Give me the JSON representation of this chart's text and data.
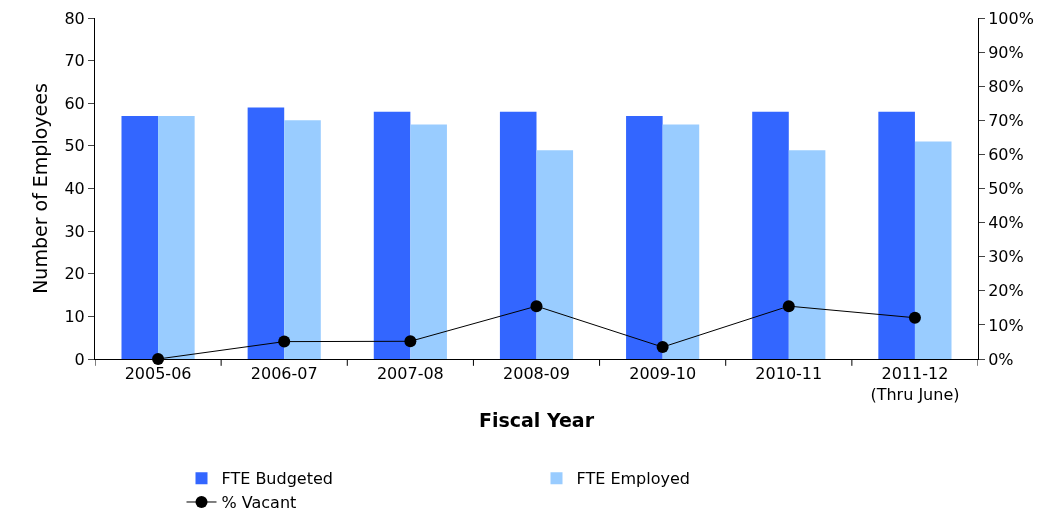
{
  "chart_data": {
    "type": "bar",
    "xlabel": "Fiscal Year",
    "ylabel": "Number of Employees",
    "categories": [
      "2005-06",
      "2006-07",
      "2007-08",
      "2008-09",
      "2009-10",
      "2010-11",
      "2011-12\n(Thru June)"
    ],
    "series": [
      {
        "name": "FTE Budgeted",
        "color": "#3366ff",
        "values": [
          57,
          59,
          58,
          58,
          57,
          58,
          58
        ]
      },
      {
        "name": "FTE Employed",
        "color": "#99ccff",
        "values": [
          57,
          56,
          55,
          49,
          55,
          49,
          51
        ]
      },
      {
        "name": "% Vacant",
        "type": "line",
        "axis": "y2",
        "color": "#000000",
        "marker": "circle",
        "values": [
          0,
          5.1,
          5.2,
          15.5,
          3.5,
          15.5,
          12.1
        ]
      }
    ],
    "ylim": [
      0,
      80
    ],
    "yticks": [
      0,
      10,
      20,
      30,
      40,
      50,
      60,
      70,
      80
    ],
    "y2lim": [
      0,
      100
    ],
    "y2ticks": [
      {
        "value": 0,
        "label": "0%"
      },
      {
        "value": 10,
        "label": "10%"
      },
      {
        "value": 20,
        "label": "20%"
      },
      {
        "value": 30,
        "label": "30%"
      },
      {
        "value": 40,
        "label": "40%"
      },
      {
        "value": 50,
        "label": "50%"
      },
      {
        "value": 60,
        "label": "60%"
      },
      {
        "value": 70,
        "label": "70%"
      },
      {
        "value": 80,
        "label": "80%"
      },
      {
        "value": 90,
        "label": "90%"
      },
      {
        "value": 100,
        "label": "100%"
      }
    ],
    "grid": false,
    "legend": "bottom"
  }
}
